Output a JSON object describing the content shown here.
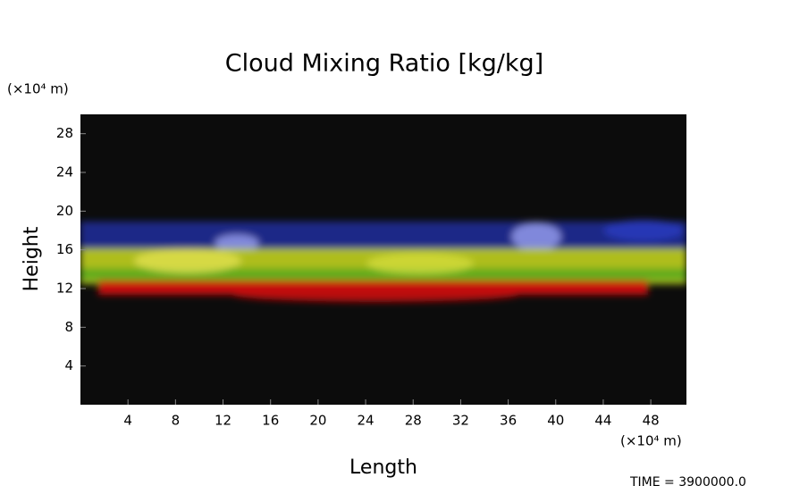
{
  "chart_data": {
    "type": "image",
    "title": "Cloud Mixing Ratio [kg/kg]",
    "x_label": "Length",
    "y_label": "Height",
    "x_unit": "(×10⁴ m)",
    "y_unit": "(×10⁴ m)",
    "xlim": [
      0,
      51
    ],
    "xticks": [
      4,
      8,
      12,
      16,
      20,
      24,
      28,
      32,
      36,
      40,
      44,
      48
    ],
    "ylim": [
      0,
      30
    ],
    "yticks": [
      4,
      8,
      12,
      16,
      20,
      24,
      28
    ],
    "background": "#0c0c0c",
    "footer": "TIME = 3900000.0"
  }
}
